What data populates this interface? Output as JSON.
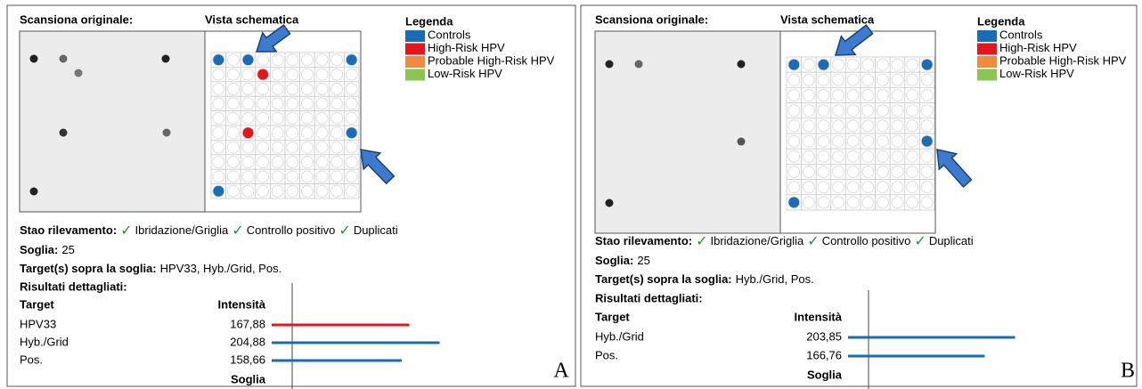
{
  "panels": [
    {
      "label": "A",
      "scan_title": "Scansiona originale:",
      "schematic_title": "Vista schematica",
      "legend": {
        "title": "Legenda",
        "items": [
          {
            "name": "Controls",
            "color": "#1a6db5"
          },
          {
            "name": "High-Risk HPV",
            "color": "#e4151b"
          },
          {
            "name": "Probable High-Risk HPV",
            "color": "#f08a3c"
          },
          {
            "name": "Low-Risk HPV",
            "color": "#8bc653"
          }
        ]
      },
      "status": {
        "label": "Stao rilevamento:",
        "checks": [
          "Ibridazione/Griglia",
          "Controllo positivo",
          "Duplicati"
        ]
      },
      "threshold": {
        "label": "Soglia:",
        "value": 25
      },
      "targets": {
        "label": "Target(s) sopra la soglia:",
        "value": "HPV33, Hyb./Grid, Pos."
      },
      "results": {
        "title": "Risultati dettagliati:",
        "target_header": "Target",
        "intensity_header": "Intensità",
        "threshold_label": "Soglia",
        "rows": [
          {
            "target": "HPV33",
            "intensity": {
              "value": 167.88,
              "label": "167,88"
            },
            "color": "#e4151b"
          },
          {
            "target": "Hyb./Grid",
            "intensity": {
              "value": 204.88,
              "label": "204,88"
            },
            "color": "#1a6db5"
          },
          {
            "target": "Pos.",
            "intensity": {
              "value": 158.66,
              "label": "158,66"
            },
            "color": "#1a6db5"
          }
        ]
      }
    },
    {
      "label": "B",
      "scan_title": "Scansiona originale:",
      "schematic_title": "Vista schematica",
      "legend": {
        "title": "Legenda",
        "items": [
          {
            "name": "Controls",
            "color": "#1a6db5"
          },
          {
            "name": "High-Risk HPV",
            "color": "#e4151b"
          },
          {
            "name": "Probable High-Risk HPV",
            "color": "#f08a3c"
          },
          {
            "name": "Low-Risk HPV",
            "color": "#8bc653"
          }
        ]
      },
      "status": {
        "label": "Stao rilevamento:",
        "checks": [
          "Ibridazione/Griglia",
          "Controllo positivo",
          "Duplicati"
        ]
      },
      "threshold": {
        "label": "Soglia:",
        "value": 25
      },
      "targets": {
        "label": "Target(s) sopra la soglia:",
        "value": "Hyb./Grid, Pos."
      },
      "results": {
        "title": "Risultati dettagliati:",
        "target_header": "Target",
        "intensity_header": "Intensità",
        "threshold_label": "Soglia",
        "rows": [
          {
            "target": "Hyb./Grid",
            "intensity": {
              "value": 203.85,
              "label": "203,85"
            },
            "color": "#1a6db5"
          },
          {
            "target": "Pos.",
            "intensity": {
              "value": 166.76,
              "label": "166,76"
            },
            "color": "#1a6db5"
          }
        ]
      }
    }
  ]
}
